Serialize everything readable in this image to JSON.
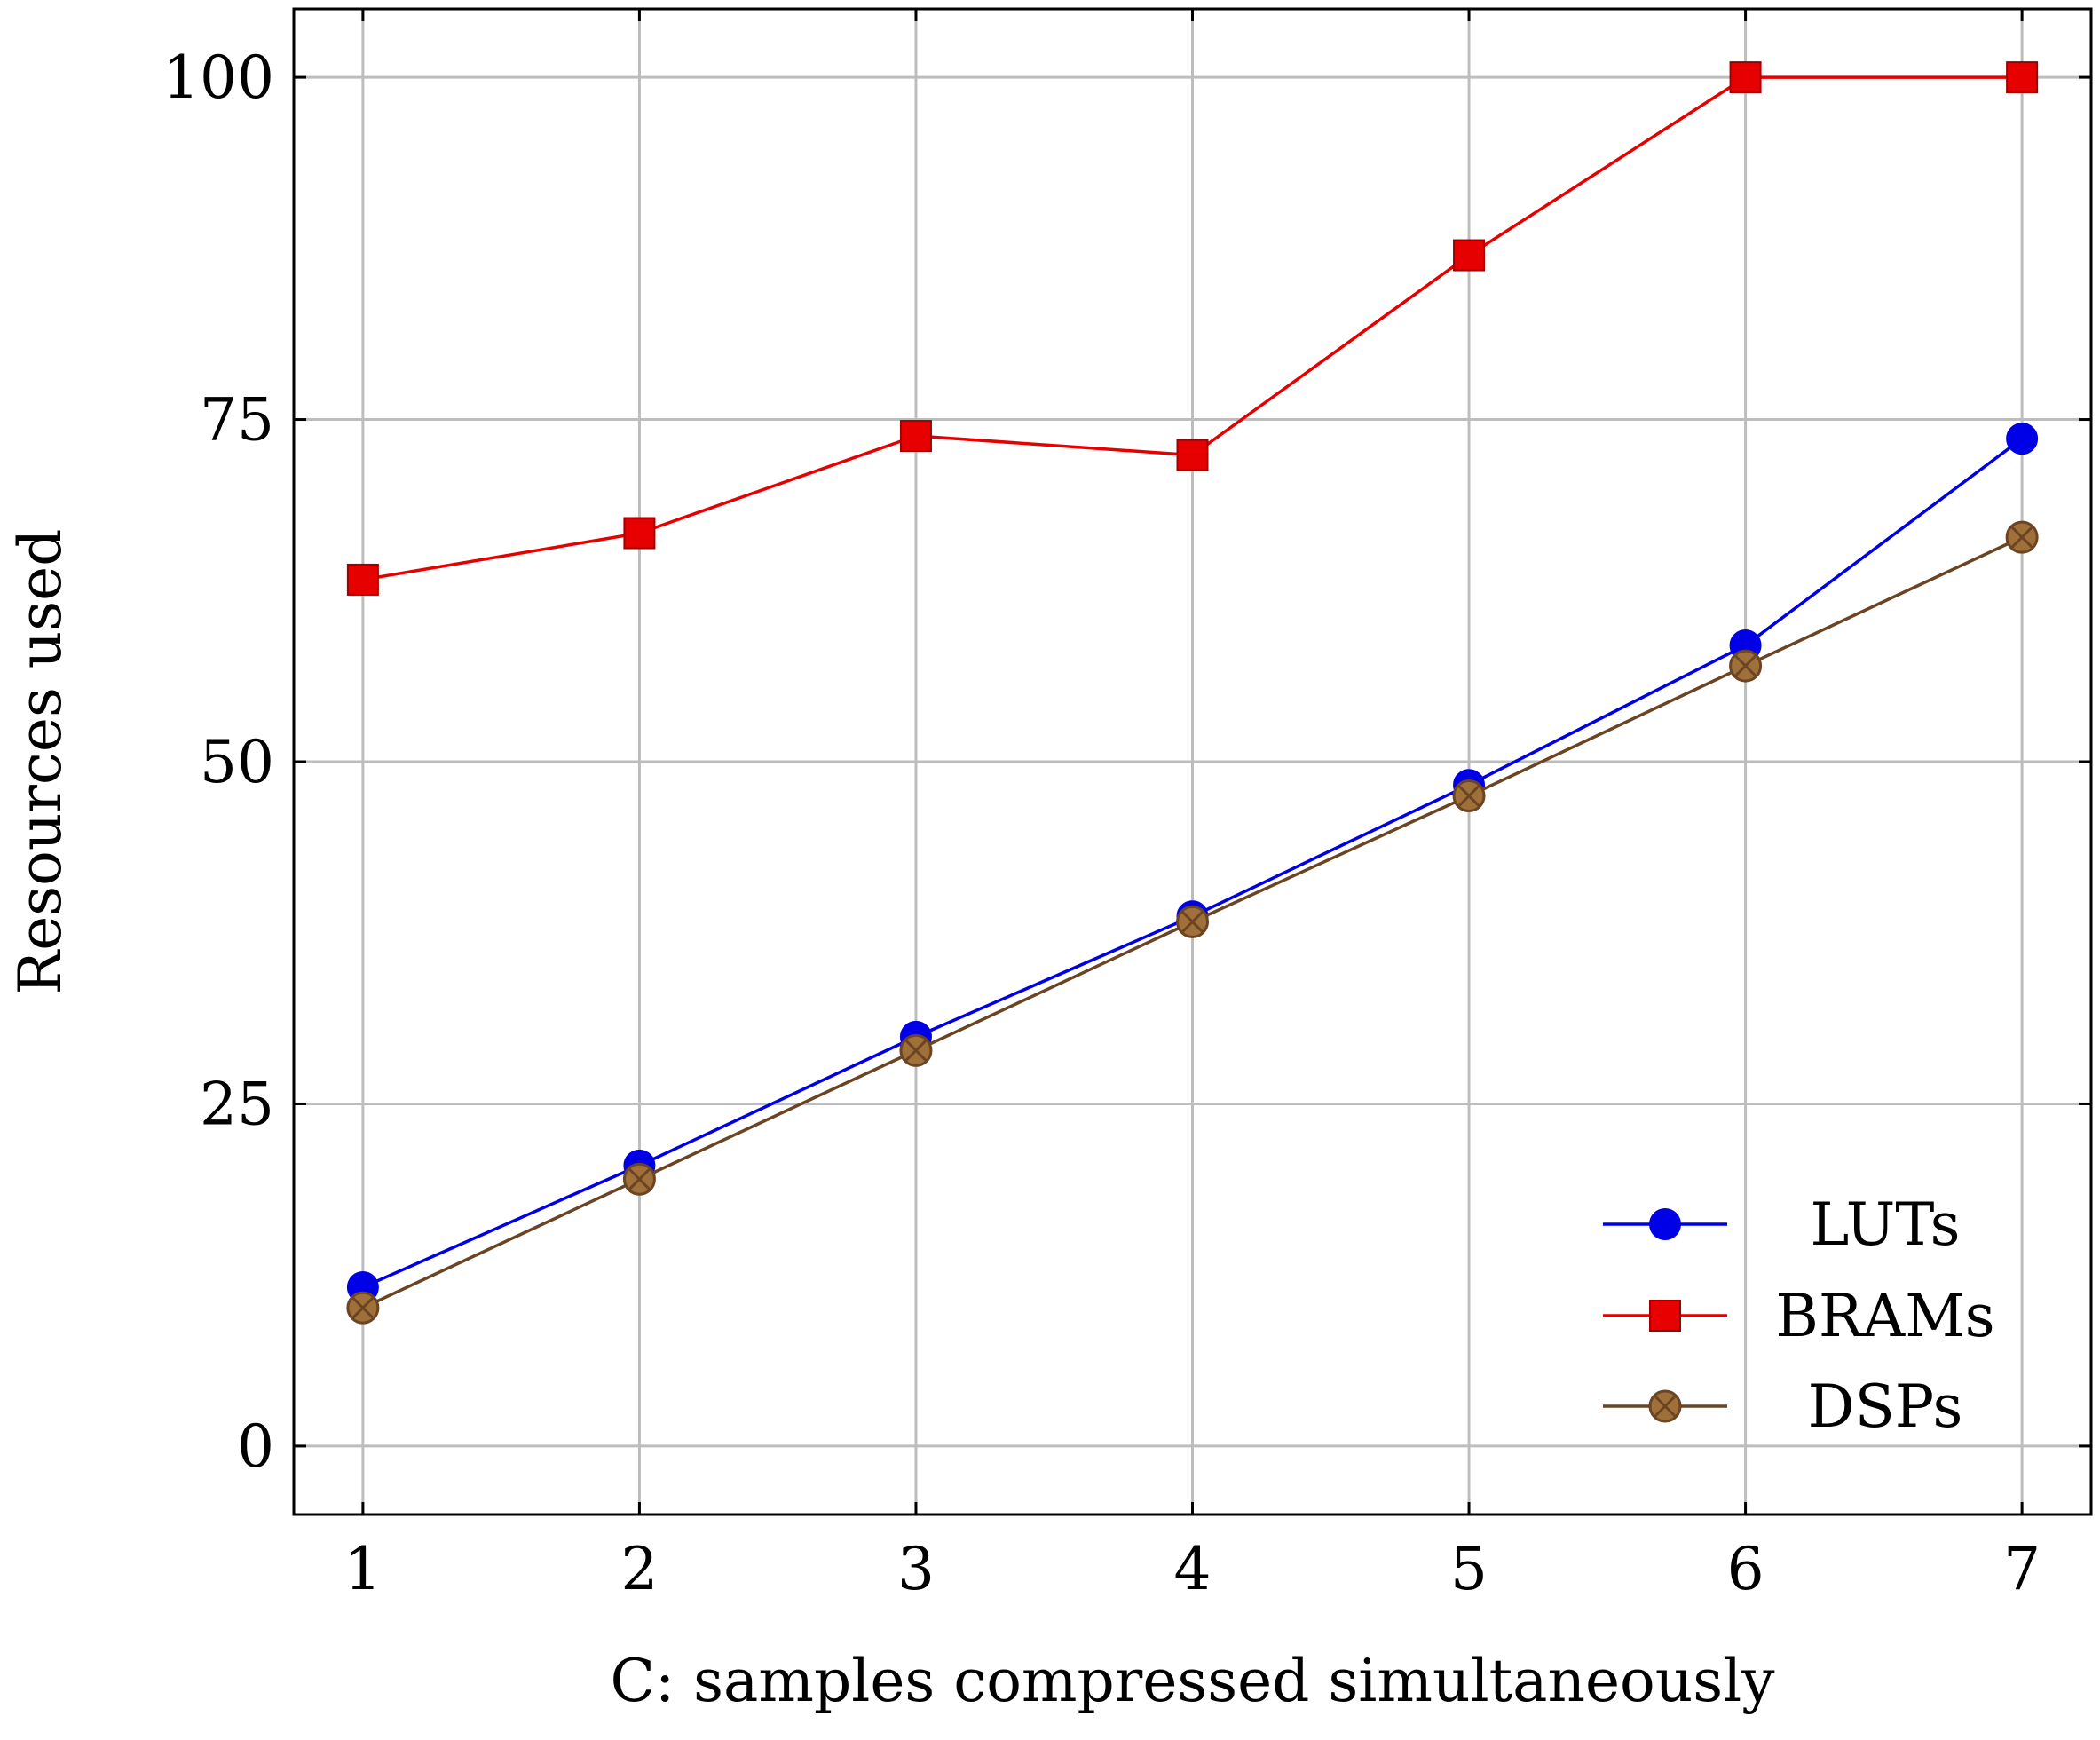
{
  "chart_data": {
    "type": "line",
    "title": "",
    "xlabel": "C: samples compressed simultaneously",
    "ylabel": "Resources used",
    "x": [
      1,
      2,
      3,
      4,
      5,
      6,
      7
    ],
    "xlim": [
      0.75,
      7.25
    ],
    "ylim": [
      -5,
      105
    ],
    "xticks": [
      1,
      2,
      3,
      4,
      5,
      6,
      7
    ],
    "yticks": [
      0,
      25,
      50,
      75,
      100
    ],
    "grid": true,
    "legend_position": "bottom-right",
    "series": [
      {
        "name": "LUTs",
        "color": "#0000e6",
        "marker": "circle",
        "values": [
          11.6,
          20.5,
          29.9,
          38.7,
          48.3,
          58.5,
          73.6
        ]
      },
      {
        "name": "BRAMs",
        "color": "#e60000",
        "marker": "square",
        "values": [
          63.3,
          66.7,
          73.8,
          72.4,
          87.0,
          100.0,
          100.0
        ]
      },
      {
        "name": "DSPs",
        "color": "#6b4423",
        "marker": "circle-crossed",
        "fill": "#a0703a",
        "values": [
          10.1,
          19.5,
          28.9,
          38.3,
          47.5,
          57.0,
          66.4
        ]
      }
    ]
  }
}
